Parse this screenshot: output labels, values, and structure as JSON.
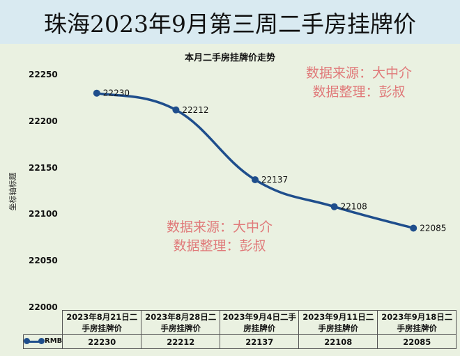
{
  "page_title": "珠海2023年9月第三周二手房挂牌价",
  "watermark": {
    "line1": "数据来源：大中介",
    "line2": "数据整理：彭叔"
  },
  "chart_data": {
    "type": "line",
    "title": "本月二手房挂牌价走势",
    "xlabel": "",
    "ylabel": "坐标轴标题",
    "ylim": [
      22000,
      22250
    ],
    "yticks": [
      22250,
      22200,
      22150,
      22100,
      22050,
      22000
    ],
    "grid": false,
    "smooth": true,
    "legend": "bottom-left (data table)",
    "categories": [
      "2023年8月21日二手房挂牌价",
      "2023年8月28日二手房挂牌价",
      "2023年9月4日二手房挂牌价",
      "2023年9月11日二手房挂牌价",
      "2023年9月18日二手房挂牌价"
    ],
    "table_headers": [
      [
        "2023年8月21日二",
        "手房挂牌价"
      ],
      [
        "2023年8月28日二",
        "手房挂牌价"
      ],
      [
        "2023年9月4日二手",
        "房挂牌价"
      ],
      [
        "2023年9月11日二",
        "手房挂牌价"
      ],
      [
        "2023年9月18日二",
        "手房挂牌价"
      ]
    ],
    "series": [
      {
        "name": "RMB",
        "color": "#1f4e8c",
        "values": [
          22230,
          22212,
          22137,
          22108,
          22085
        ]
      }
    ]
  }
}
